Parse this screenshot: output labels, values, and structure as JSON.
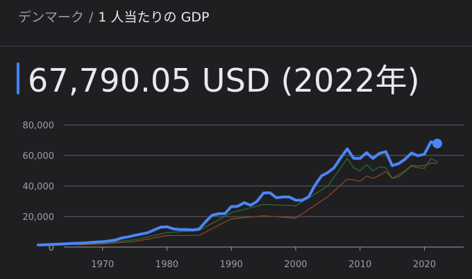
{
  "header": {
    "country": "デンマーク",
    "separator": "/",
    "indicator": "1 人当たりの GDP"
  },
  "headline": "67,790.05 USD (2022年)",
  "chart_data": {
    "type": "line",
    "xlim": [
      1960,
      2022
    ],
    "ylim": [
      0,
      80000
    ],
    "x_ticks": [
      "1970",
      "1980",
      "1990",
      "2000",
      "2010",
      "2020"
    ],
    "y_ticks": [
      "0",
      "20,000",
      "40,000",
      "60,000",
      "80,000"
    ],
    "grid": true,
    "series": [
      {
        "color": "#4a86f7",
        "x": [
          1960,
          1961,
          1962,
          1963,
          1964,
          1965,
          1966,
          1967,
          1968,
          1969,
          1970,
          1971,
          1972,
          1973,
          1974,
          1975,
          1976,
          1977,
          1978,
          1979,
          1980,
          1981,
          1982,
          1983,
          1984,
          1985,
          1986,
          1987,
          1988,
          1989,
          1990,
          1991,
          1992,
          1993,
          1994,
          1995,
          1996,
          1997,
          1998,
          1999,
          2000,
          2001,
          2002,
          2003,
          2004,
          2005,
          2006,
          2007,
          2008,
          2009,
          2010,
          2011,
          2012,
          2013,
          2014,
          2015,
          2016,
          2017,
          2018,
          2019,
          2020,
          2021,
          2022
        ],
        "y": [
          1400,
          1500,
          1700,
          1850,
          2050,
          2300,
          2500,
          2700,
          2950,
          3300,
          3500,
          4000,
          4600,
          6000,
          6700,
          7700,
          8500,
          9400,
          11200,
          13000,
          13300,
          11900,
          11500,
          11500,
          11200,
          11800,
          16500,
          20800,
          21800,
          21900,
          26500,
          26700,
          29100,
          27400,
          29900,
          35400,
          35600,
          32300,
          32800,
          32800,
          30700,
          30700,
          32800,
          40500,
          46600,
          48800,
          52100,
          58500,
          64300,
          58200,
          58000,
          61800,
          58100,
          61300,
          62500,
          53300,
          54700,
          57600,
          61600,
          59800,
          60900,
          68900,
          67790
        ]
      },
      {
        "color": "#2e6b35",
        "x": [
          1966,
          1970,
          1975,
          1980,
          1985,
          1990,
          1995,
          2000,
          2005,
          2008,
          2009,
          2010,
          2011,
          2012,
          2013,
          2014,
          2015,
          2016,
          2017,
          2018,
          2019,
          2020,
          2021,
          2022
        ],
        "y": [
          1800,
          2500,
          4800,
          9500,
          10800,
          22500,
          28000,
          27000,
          40000,
          58000,
          52000,
          50000,
          54000,
          50000,
          52500,
          52000,
          45000,
          46000,
          49500,
          53000,
          52000,
          51500,
          58000,
          56000
        ]
      },
      {
        "color": "#8a4a1e",
        "x": [
          1966,
          1970,
          1975,
          1980,
          1985,
          1990,
          1995,
          2000,
          2005,
          2008,
          2009,
          2010,
          2011,
          2012,
          2013,
          2014,
          2015,
          2016,
          2017,
          2018,
          2019,
          2020,
          2021,
          2022
        ],
        "y": [
          1500,
          2000,
          3700,
          7600,
          7700,
          18500,
          20500,
          19000,
          33000,
          44500,
          44000,
          43000,
          46500,
          45000,
          47000,
          49500,
          45000,
          47500,
          50000,
          53500,
          53000,
          53500,
          55000,
          55000
        ]
      }
    ]
  }
}
